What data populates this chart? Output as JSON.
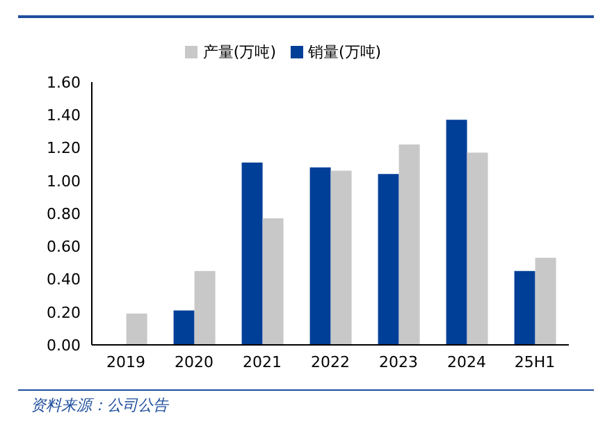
{
  "chart_data": {
    "type": "bar",
    "categories": [
      "2019",
      "2020",
      "2021",
      "2022",
      "2023",
      "2024",
      "25H1"
    ],
    "series": [
      {
        "name": "销量(万吨)",
        "color": "#003f98",
        "values": [
          null,
          0.21,
          1.11,
          1.08,
          1.04,
          1.37,
          0.45
        ]
      },
      {
        "name": "产量(万吨)",
        "color": "#c8c8c8",
        "values": [
          0.19,
          0.45,
          0.77,
          1.06,
          1.22,
          1.17,
          0.53
        ]
      }
    ],
    "ylim": [
      0,
      1.6
    ],
    "yticks": [
      {
        "value": 0,
        "label": "0.00"
      },
      {
        "value": 0.2,
        "label": "0.20"
      },
      {
        "value": 0.4,
        "label": "0.40"
      },
      {
        "value": 0.6,
        "label": "0.60"
      },
      {
        "value": 0.8,
        "label": "0.80"
      },
      {
        "value": 1,
        "label": "1.00"
      },
      {
        "value": 1.2,
        "label": "1.20"
      },
      {
        "value": 1.4,
        "label": "1.40"
      },
      {
        "value": 1.6,
        "label": "1.60"
      }
    ],
    "legend": "top",
    "annotations": [
      "资料来源：公司公告"
    ]
  }
}
